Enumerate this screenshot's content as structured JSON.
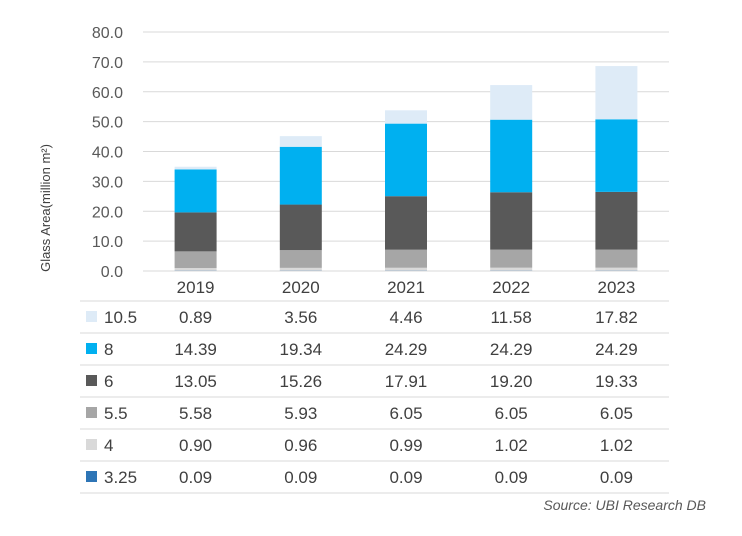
{
  "chart_data": {
    "type": "bar",
    "stacked": true,
    "categories": [
      "2019",
      "2020",
      "2021",
      "2022",
      "2023"
    ],
    "ylabel": "Glass Area(million m²)",
    "ylim": [
      0,
      80
    ],
    "yticks": [
      "0.0",
      "10.0",
      "20.0",
      "30.0",
      "40.0",
      "50.0",
      "60.0",
      "70.0",
      "80.0"
    ],
    "grid": true,
    "series": [
      {
        "name": "3.25",
        "color": "#2e75b6",
        "values": [
          0.09,
          0.09,
          0.09,
          0.09,
          0.09
        ],
        "labels": [
          "0.09",
          "0.09",
          "0.09",
          "0.09",
          "0.09"
        ]
      },
      {
        "name": "4",
        "color": "#d9d9d9",
        "values": [
          0.9,
          0.96,
          0.99,
          1.02,
          1.02
        ],
        "labels": [
          "0.90",
          "0.96",
          "0.99",
          "1.02",
          "1.02"
        ]
      },
      {
        "name": "5.5",
        "color": "#a6a6a6",
        "values": [
          5.58,
          5.93,
          6.05,
          6.05,
          6.05
        ],
        "labels": [
          "5.58",
          "5.93",
          "6.05",
          "6.05",
          "6.05"
        ]
      },
      {
        "name": "6",
        "color": "#595959",
        "values": [
          13.05,
          15.26,
          17.91,
          19.2,
          19.33
        ],
        "labels": [
          "13.05",
          "15.26",
          "17.91",
          "19.20",
          "19.33"
        ]
      },
      {
        "name": "8",
        "color": "#00b0f0",
        "values": [
          14.39,
          19.34,
          24.29,
          24.29,
          24.29
        ],
        "labels": [
          "14.39",
          "19.34",
          "24.29",
          "24.29",
          "24.29"
        ]
      },
      {
        "name": "10.5",
        "color": "#deebf7",
        "values": [
          0.89,
          3.56,
          4.46,
          11.58,
          17.82
        ],
        "labels": [
          "0.89",
          "3.56",
          "4.46",
          "11.58",
          "17.82"
        ]
      }
    ],
    "legend": "data table below chart",
    "source": "Source: UBI Research DB"
  }
}
